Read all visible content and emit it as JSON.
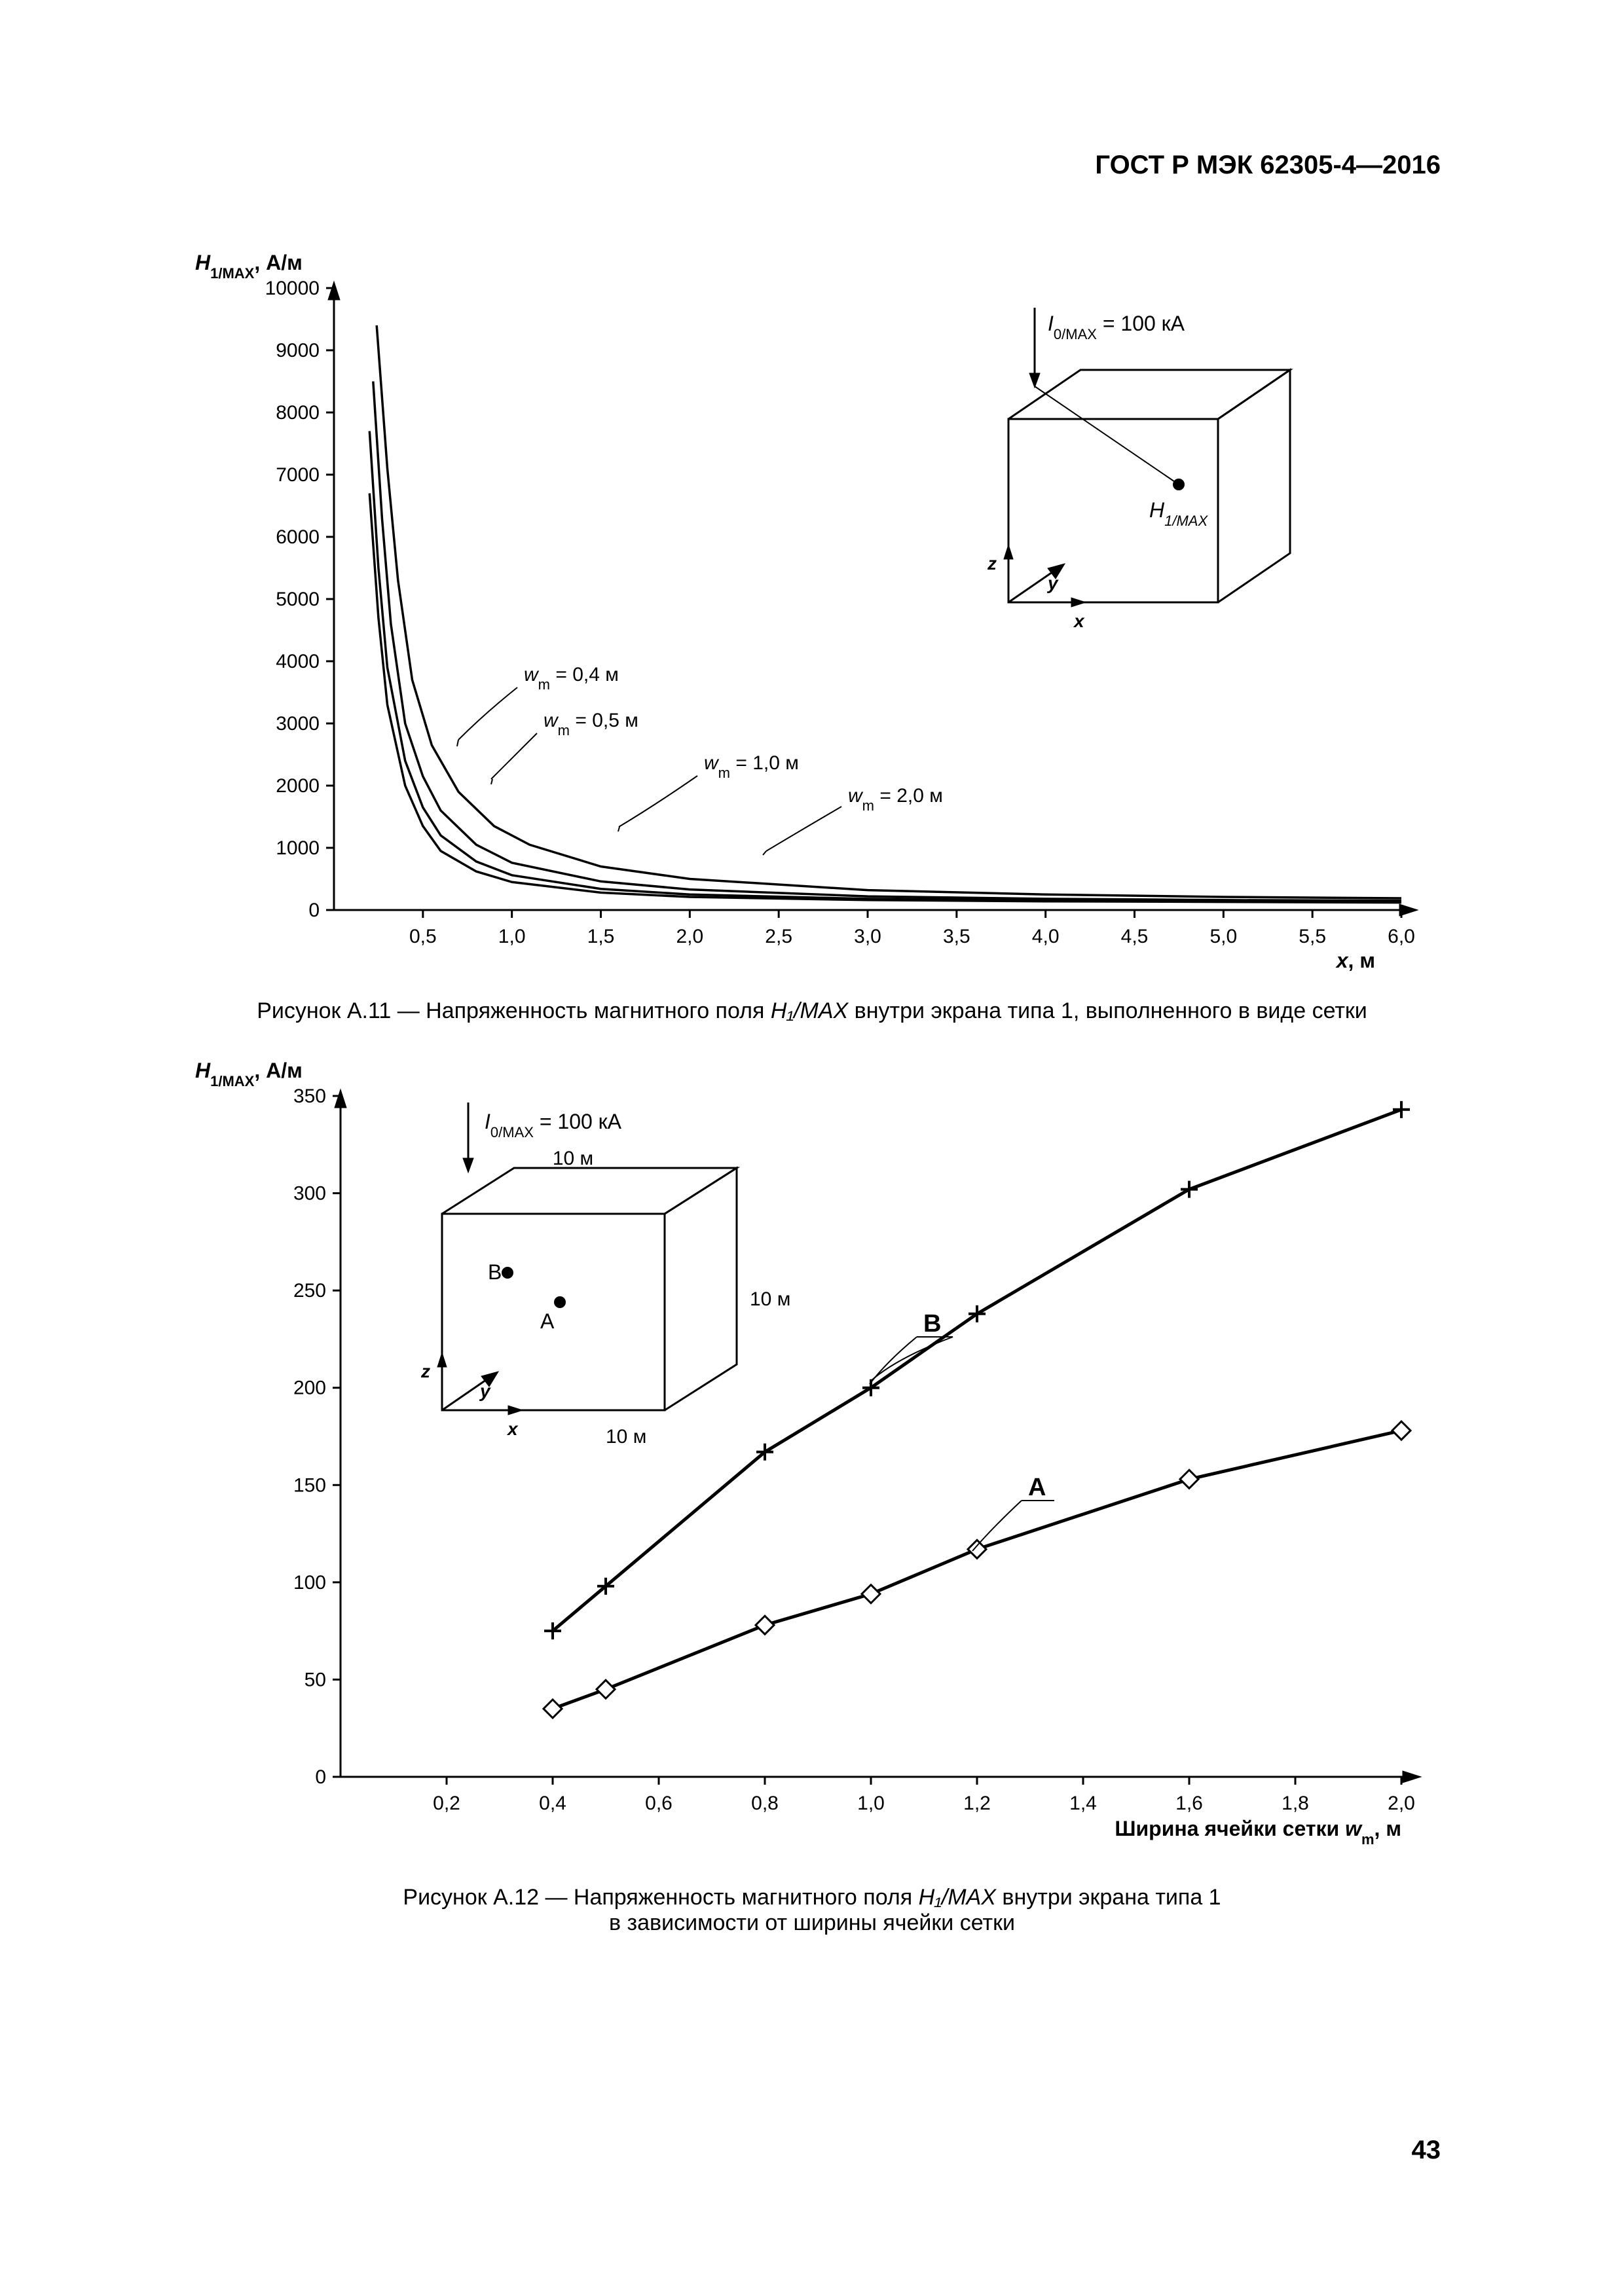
{
  "doc_header": "ГОСТ Р МЭК 62305-4—2016",
  "page_number": "43",
  "fig1": {
    "type": "line",
    "y_axis_label": "H₁/MAX, А/м",
    "x_axis_label": "x, м",
    "background_color": "#ffffff",
    "line_color": "#000000",
    "line_width": 3.5,
    "x_ticks": [
      "0,5",
      "1,0",
      "1,5",
      "2,0",
      "2,5",
      "3,0",
      "3,5",
      "4,0",
      "4,5",
      "5,0",
      "5,5",
      "6,0"
    ],
    "x_tick_values": [
      0.5,
      1.0,
      1.5,
      2.0,
      2.5,
      3.0,
      3.5,
      4.0,
      4.5,
      5.0,
      5.5,
      6.0
    ],
    "y_ticks": [
      "0",
      "1000",
      "2000",
      "3000",
      "4000",
      "5000",
      "6000",
      "7000",
      "8000",
      "9000",
      "10000"
    ],
    "y_tick_values": [
      0,
      1000,
      2000,
      3000,
      4000,
      5000,
      6000,
      7000,
      8000,
      9000,
      10000
    ],
    "xlim": [
      0,
      6.0
    ],
    "ylim": [
      0,
      10000
    ],
    "inset_label": "I₀/MAX = 100 кА",
    "inset_point_label": "H₁/MAX",
    "inset_axes": {
      "z": "z",
      "y": "y",
      "x": "x"
    },
    "curve_labels": [
      {
        "text": "wₘ = 0,4 м",
        "series": "w04"
      },
      {
        "text": "wₘ = 0,5 м",
        "series": "w05"
      },
      {
        "text": "wₘ = 1,0 м",
        "series": "w10"
      },
      {
        "text": "wₘ = 2,0 м",
        "series": "w20"
      }
    ],
    "series": {
      "w04": [
        [
          0.2,
          6700
        ],
        [
          0.25,
          4700
        ],
        [
          0.3,
          3300
        ],
        [
          0.4,
          2000
        ],
        [
          0.5,
          1350
        ],
        [
          0.6,
          950
        ],
        [
          0.8,
          620
        ],
        [
          1.0,
          450
        ],
        [
          1.5,
          280
        ],
        [
          2.0,
          210
        ],
        [
          3.0,
          160
        ],
        [
          4.0,
          140
        ],
        [
          5.0,
          130
        ],
        [
          6.0,
          120
        ]
      ],
      "w05": [
        [
          0.2,
          7700
        ],
        [
          0.25,
          5500
        ],
        [
          0.3,
          3900
        ],
        [
          0.4,
          2400
        ],
        [
          0.5,
          1650
        ],
        [
          0.6,
          1200
        ],
        [
          0.8,
          780
        ],
        [
          1.0,
          560
        ],
        [
          1.5,
          340
        ],
        [
          2.0,
          250
        ],
        [
          3.0,
          180
        ],
        [
          4.0,
          155
        ],
        [
          5.0,
          140
        ],
        [
          6.0,
          130
        ]
      ],
      "w10": [
        [
          0.22,
          8500
        ],
        [
          0.27,
          6300
        ],
        [
          0.32,
          4600
        ],
        [
          0.4,
          3000
        ],
        [
          0.5,
          2150
        ],
        [
          0.6,
          1600
        ],
        [
          0.8,
          1050
        ],
        [
          1.0,
          760
        ],
        [
          1.5,
          460
        ],
        [
          2.0,
          330
        ],
        [
          3.0,
          220
        ],
        [
          4.0,
          180
        ],
        [
          5.0,
          160
        ],
        [
          6.0,
          150
        ]
      ],
      "w20": [
        [
          0.24,
          9400
        ],
        [
          0.3,
          7100
        ],
        [
          0.36,
          5300
        ],
        [
          0.44,
          3700
        ],
        [
          0.55,
          2650
        ],
        [
          0.7,
          1900
        ],
        [
          0.9,
          1350
        ],
        [
          1.1,
          1050
        ],
        [
          1.5,
          700
        ],
        [
          2.0,
          500
        ],
        [
          3.0,
          320
        ],
        [
          4.0,
          250
        ],
        [
          5.0,
          210
        ],
        [
          6.0,
          190
        ]
      ]
    },
    "caption_prefix": "Рисунок А.11 — Напряженность магнитного поля ",
    "caption_italic": "H₁/MAX",
    "caption_suffix": " внутри экрана типа 1, выполненного в виде сетки"
  },
  "fig2": {
    "type": "line",
    "y_axis_label": "H₁/MAX, А/м",
    "x_axis_label": "Ширина ячейки сетки wₘ, м",
    "background_color": "#ffffff",
    "line_color": "#000000",
    "line_width": 5,
    "x_ticks": [
      "0,2",
      "0,4",
      "0,6",
      "0,8",
      "1,0",
      "1,2",
      "1,4",
      "1,6",
      "1,8",
      "2,0"
    ],
    "x_tick_values": [
      0.2,
      0.4,
      0.6,
      0.8,
      1.0,
      1.2,
      1.4,
      1.6,
      1.8,
      2.0
    ],
    "y_ticks": [
      "0",
      "50",
      "100",
      "150",
      "200",
      "250",
      "300",
      "350"
    ],
    "y_tick_values": [
      0,
      50,
      100,
      150,
      200,
      250,
      300,
      350
    ],
    "xlim": [
      0,
      2.0
    ],
    "ylim": [
      0,
      350
    ],
    "inset_label": "I₀/MAX = 100 кА",
    "inset_dim": "10 м",
    "inset_points": {
      "A": "A",
      "B": "B"
    },
    "inset_axes": {
      "z": "z",
      "y": "y",
      "x": "x"
    },
    "series_labels": {
      "A": "A",
      "B": "B"
    },
    "series": {
      "B": {
        "marker": "plus",
        "points": [
          [
            0.4,
            75
          ],
          [
            0.5,
            98
          ],
          [
            0.8,
            167
          ],
          [
            1.0,
            200
          ],
          [
            1.2,
            238
          ],
          [
            1.6,
            302
          ],
          [
            2.0,
            343
          ]
        ]
      },
      "A": {
        "marker": "diamond",
        "points": [
          [
            0.4,
            35
          ],
          [
            0.5,
            45
          ],
          [
            0.8,
            78
          ],
          [
            1.0,
            94
          ],
          [
            1.2,
            117
          ],
          [
            1.6,
            153
          ],
          [
            2.0,
            178
          ]
        ]
      }
    },
    "caption_line1_prefix": "Рисунок А.12 — Напряженность магнитного поля ",
    "caption_line1_italic": "H₁/MAX",
    "caption_line1_suffix": " внутри экрана типа 1",
    "caption_line2": "в зависимости от ширины ячейки сетки"
  }
}
